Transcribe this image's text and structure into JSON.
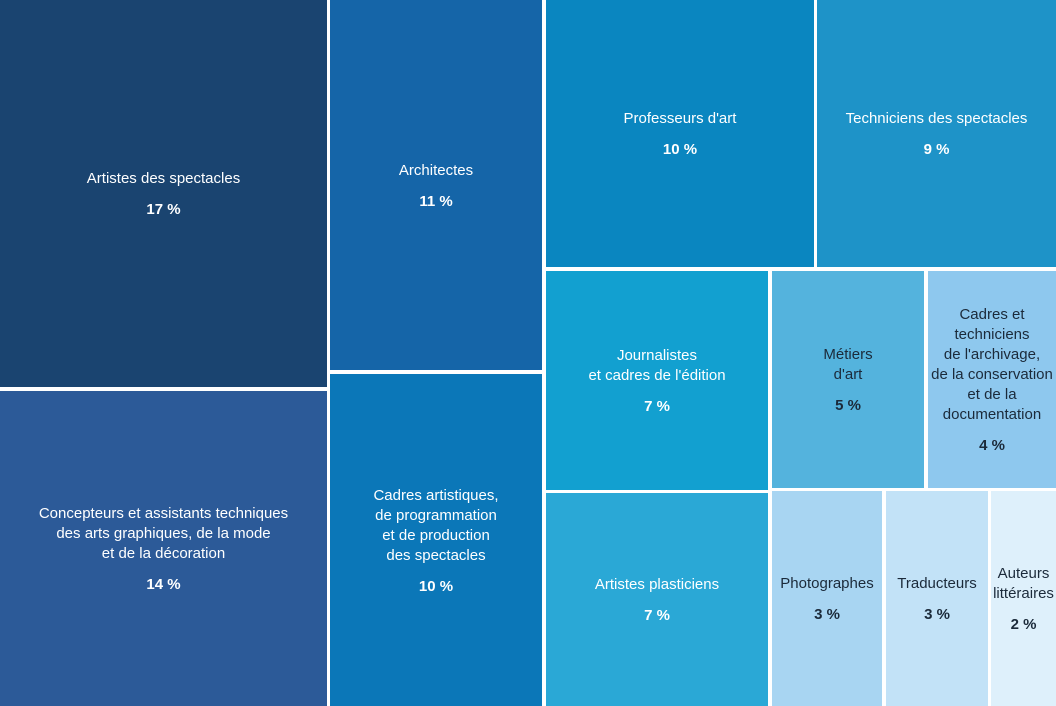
{
  "chart_data": {
    "type": "treemap",
    "categories": [
      "Artistes des spectacles",
      "Architectes",
      "Professeurs d'art",
      "Techniciens des spectacles",
      "Concepteurs et assistants techniques\ndes arts graphiques, de la mode\net de la décoration",
      "Cadres artistiques,\nde programmation\net de production\ndes spectacles",
      "Journalistes\net cadres de l'édition",
      "Métiers\nd'art",
      "Cadres et techniciens\nde l'archivage,\nde la conservation\net de la documentation",
      "Artistes plasticiens",
      "Photographes",
      "Traducteurs",
      "Auteurs\nlittéraires"
    ],
    "values": [
      17,
      11,
      10,
      9,
      14,
      10,
      7,
      5,
      4,
      7,
      3,
      3,
      2
    ],
    "value_labels": [
      "17 %",
      "11 %",
      "10 %",
      "9 %",
      "14 %",
      "10 %",
      "7 %",
      "5 %",
      "4 %",
      "7 %",
      "3 %",
      "3 %",
      "2 %"
    ],
    "colors": [
      "#1a4470",
      "#1565a8",
      "#0a86c0",
      "#1e93c8",
      "#2c5a98",
      "#0b77b8",
      "#12a0d0",
      "#54b3dd",
      "#8ec8ee",
      "#2aa8d6",
      "#a8d5f2",
      "#c2e2f7",
      "#def0fb"
    ]
  }
}
